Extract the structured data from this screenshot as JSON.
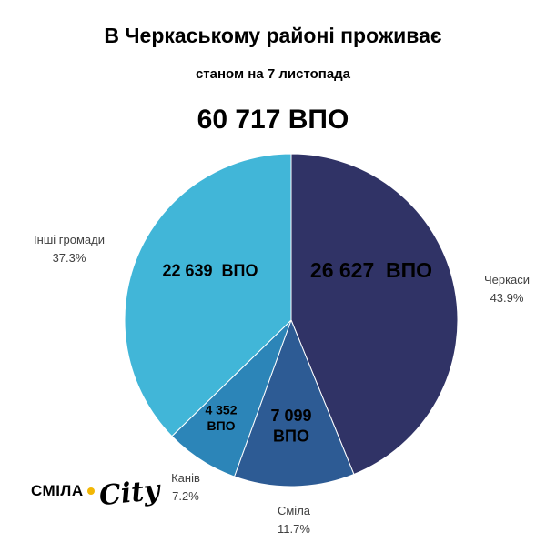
{
  "header": {
    "title": "В Черкаському районі проживає",
    "subtitle": "станом на 7 листопада",
    "total": "60 717 ВПО"
  },
  "logo": {
    "text": "СМІЛА",
    "accent": "City",
    "dot_color": "#f2b705"
  },
  "chart_data": {
    "type": "pie",
    "title": "В Черкаському районі проживає",
    "subtitle": "станом на 7 листопада",
    "slices": [
      {
        "name": "Черкаси",
        "value": 26627,
        "label": "26 627  ВПО",
        "percent": "43.9%",
        "color": "#303366"
      },
      {
        "name": "Сміла",
        "value": 7099,
        "label": "7 099 ВПО",
        "percent": "11.7%",
        "color": "#2d5b94"
      },
      {
        "name": "Канів",
        "value": 4352,
        "label": "4 352 ВПО",
        "percent": "7.2%",
        "color": "#2c85b8"
      },
      {
        "name": "Інші громади",
        "value": 22639,
        "label": "22 639  ВПО",
        "percent": "37.3%",
        "color": "#41b6d8"
      }
    ]
  }
}
